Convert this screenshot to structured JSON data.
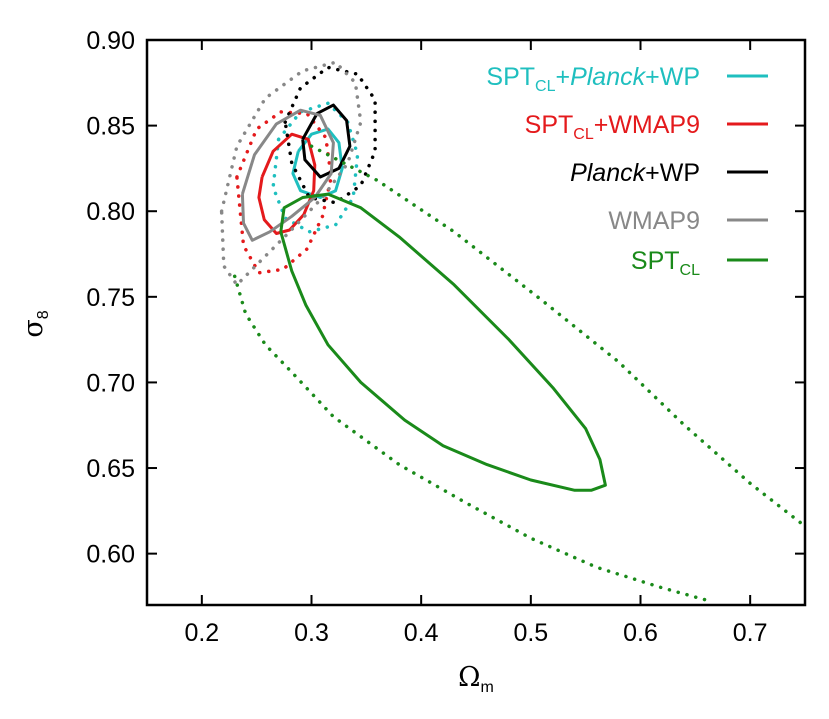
{
  "chart_data": {
    "type": "line",
    "title": "",
    "xlabel": {
      "main": "Ω",
      "sub": "m"
    },
    "ylabel": {
      "main": "σ",
      "sub": "8"
    },
    "xlim": [
      0.15,
      0.75
    ],
    "ylim": [
      0.57,
      0.9
    ],
    "x_ticks": [
      0.2,
      0.3,
      0.4,
      0.5,
      0.6,
      0.7
    ],
    "x_tick_labels": [
      "0.2",
      "0.3",
      "0.4",
      "0.5",
      "0.6",
      "0.7"
    ],
    "y_ticks": [
      0.6,
      0.65,
      0.7,
      0.75,
      0.8,
      0.85,
      0.9
    ],
    "y_tick_labels": [
      "0.60",
      "0.65",
      "0.70",
      "0.75",
      "0.80",
      "0.85",
      "0.90"
    ],
    "grid": false,
    "legend_position": "top-right",
    "series": [
      {
        "name": "SPT_CL+Planck+WP",
        "legend": [
          {
            "t": "SPT"
          },
          {
            "t": "CL",
            "sub": true
          },
          {
            "t": "+"
          },
          {
            "t": "Planck",
            "italic": true
          },
          {
            "t": "+WP"
          }
        ],
        "color": "#1fbfbf",
        "contours": [
          {
            "level": "68%",
            "style": "solid",
            "points": [
              [
                0.288,
                0.835
              ],
              [
                0.3,
                0.845
              ],
              [
                0.315,
                0.848
              ],
              [
                0.325,
                0.84
              ],
              [
                0.328,
                0.825
              ],
              [
                0.322,
                0.812
              ],
              [
                0.308,
                0.808
              ],
              [
                0.29,
                0.812
              ],
              [
                0.283,
                0.822
              ],
              [
                0.288,
                0.835
              ]
            ]
          },
          {
            "level": "95%",
            "style": "dotted",
            "points": [
              [
                0.27,
                0.842
              ],
              [
                0.29,
                0.858
              ],
              [
                0.315,
                0.863
              ],
              [
                0.333,
                0.852
              ],
              [
                0.342,
                0.833
              ],
              [
                0.338,
                0.808
              ],
              [
                0.322,
                0.792
              ],
              [
                0.298,
                0.788
              ],
              [
                0.276,
                0.796
              ],
              [
                0.265,
                0.814
              ],
              [
                0.27,
                0.842
              ]
            ]
          }
        ]
      },
      {
        "name": "SPT_CL+WMAP9",
        "legend": [
          {
            "t": "SPT"
          },
          {
            "t": "CL",
            "sub": true
          },
          {
            "t": "+WMAP9"
          }
        ],
        "color": "#e41a1c",
        "contours": [
          {
            "level": "68%",
            "style": "solid",
            "points": [
              [
                0.255,
                0.82
              ],
              [
                0.265,
                0.835
              ],
              [
                0.282,
                0.845
              ],
              [
                0.297,
                0.842
              ],
              [
                0.303,
                0.827
              ],
              [
                0.302,
                0.812
              ],
              [
                0.293,
                0.798
              ],
              [
                0.28,
                0.789
              ],
              [
                0.268,
                0.787
              ],
              [
                0.257,
                0.795
              ],
              [
                0.252,
                0.808
              ],
              [
                0.255,
                0.82
              ]
            ]
          },
          {
            "level": "95%",
            "style": "dotted",
            "points": [
              [
                0.232,
                0.82
              ],
              [
                0.25,
                0.848
              ],
              [
                0.272,
                0.858
              ],
              [
                0.296,
                0.857
              ],
              [
                0.313,
                0.843
              ],
              [
                0.318,
                0.82
              ],
              [
                0.31,
                0.797
              ],
              [
                0.296,
                0.778
              ],
              [
                0.274,
                0.766
              ],
              [
                0.252,
                0.764
              ],
              [
                0.238,
                0.78
              ],
              [
                0.232,
                0.82
              ]
            ]
          }
        ]
      },
      {
        "name": "Planck+WP",
        "legend": [
          {
            "t": "Planck",
            "italic": true
          },
          {
            "t": "+WP"
          }
        ],
        "color": "#000000",
        "contours": [
          {
            "level": "68%",
            "style": "solid",
            "points": [
              [
                0.292,
                0.842
              ],
              [
                0.305,
                0.857
              ],
              [
                0.32,
                0.862
              ],
              [
                0.332,
                0.853
              ],
              [
                0.335,
                0.838
              ],
              [
                0.325,
                0.825
              ],
              [
                0.308,
                0.82
              ],
              [
                0.294,
                0.83
              ],
              [
                0.292,
                0.842
              ]
            ]
          },
          {
            "level": "95%",
            "style": "dotted",
            "points": [
              [
                0.276,
                0.852
              ],
              [
                0.29,
                0.872
              ],
              [
                0.315,
                0.884
              ],
              [
                0.342,
                0.88
              ],
              [
                0.358,
                0.865
              ],
              [
                0.358,
                0.835
              ],
              [
                0.345,
                0.815
              ],
              [
                0.322,
                0.805
              ],
              [
                0.298,
                0.808
              ],
              [
                0.282,
                0.828
              ],
              [
                0.276,
                0.852
              ]
            ]
          }
        ]
      },
      {
        "name": "WMAP9",
        "legend": [
          {
            "t": "WMAP9"
          }
        ],
        "color": "#888888",
        "contours": [
          {
            "level": "68%",
            "style": "solid",
            "points": [
              [
                0.237,
                0.81
              ],
              [
                0.248,
                0.833
              ],
              [
                0.268,
                0.851
              ],
              [
                0.29,
                0.859
              ],
              [
                0.308,
                0.856
              ],
              [
                0.32,
                0.84
              ],
              [
                0.318,
                0.822
              ],
              [
                0.303,
                0.808
              ],
              [
                0.282,
                0.797
              ],
              [
                0.262,
                0.788
              ],
              [
                0.246,
                0.783
              ],
              [
                0.238,
                0.793
              ],
              [
                0.237,
                0.81
              ]
            ]
          },
          {
            "level": "95%",
            "style": "dotted",
            "points": [
              [
                0.218,
                0.8
              ],
              [
                0.232,
                0.838
              ],
              [
                0.258,
                0.866
              ],
              [
                0.292,
                0.882
              ],
              [
                0.322,
                0.887
              ],
              [
                0.34,
                0.875
              ],
              [
                0.345,
                0.852
              ],
              [
                0.333,
                0.828
              ],
              [
                0.31,
                0.808
              ],
              [
                0.28,
                0.788
              ],
              [
                0.252,
                0.77
              ],
              [
                0.232,
                0.757
              ],
              [
                0.22,
                0.768
              ],
              [
                0.218,
                0.8
              ]
            ]
          }
        ]
      },
      {
        "name": "SPT_CL",
        "legend": [
          {
            "t": "SPT"
          },
          {
            "t": "CL",
            "sub": true
          }
        ],
        "color": "#1a8a1a",
        "contours": [
          {
            "level": "68%",
            "style": "solid",
            "points": [
              [
                0.272,
                0.788
              ],
              [
                0.275,
                0.802
              ],
              [
                0.292,
                0.808
              ],
              [
                0.315,
                0.81
              ],
              [
                0.345,
                0.802
              ],
              [
                0.38,
                0.785
              ],
              [
                0.43,
                0.757
              ],
              [
                0.48,
                0.725
              ],
              [
                0.52,
                0.697
              ],
              [
                0.55,
                0.673
              ],
              [
                0.563,
                0.655
              ],
              [
                0.568,
                0.64
              ],
              [
                0.555,
                0.637
              ],
              [
                0.54,
                0.637
              ],
              [
                0.5,
                0.643
              ],
              [
                0.46,
                0.652
              ],
              [
                0.42,
                0.663
              ],
              [
                0.385,
                0.678
              ],
              [
                0.345,
                0.7
              ],
              [
                0.315,
                0.722
              ],
              [
                0.295,
                0.745
              ],
              [
                0.282,
                0.765
              ],
              [
                0.272,
                0.788
              ]
            ]
          },
          {
            "level": "95%",
            "style": "dotted",
            "points": [
              [
                0.23,
                0.762
              ],
              [
                0.24,
                0.74
              ],
              [
                0.258,
                0.722
              ],
              [
                0.282,
                0.706
              ],
              [
                0.32,
                0.68
              ],
              [
                0.38,
                0.652
              ],
              [
                0.44,
                0.63
              ],
              [
                0.5,
                0.609
              ],
              [
                0.56,
                0.592
              ],
              [
                0.62,
                0.58
              ],
              [
                0.665,
                0.572
              ]
            ]
          },
          {
            "level": "95%",
            "style": "dotted",
            "points": [
              [
                0.3,
                0.838
              ],
              [
                0.36,
                0.818
              ],
              [
                0.43,
                0.788
              ],
              [
                0.51,
                0.748
              ],
              [
                0.58,
                0.712
              ],
              [
                0.64,
                0.675
              ],
              [
                0.7,
                0.641
              ],
              [
                0.75,
                0.616
              ]
            ]
          }
        ]
      }
    ]
  }
}
